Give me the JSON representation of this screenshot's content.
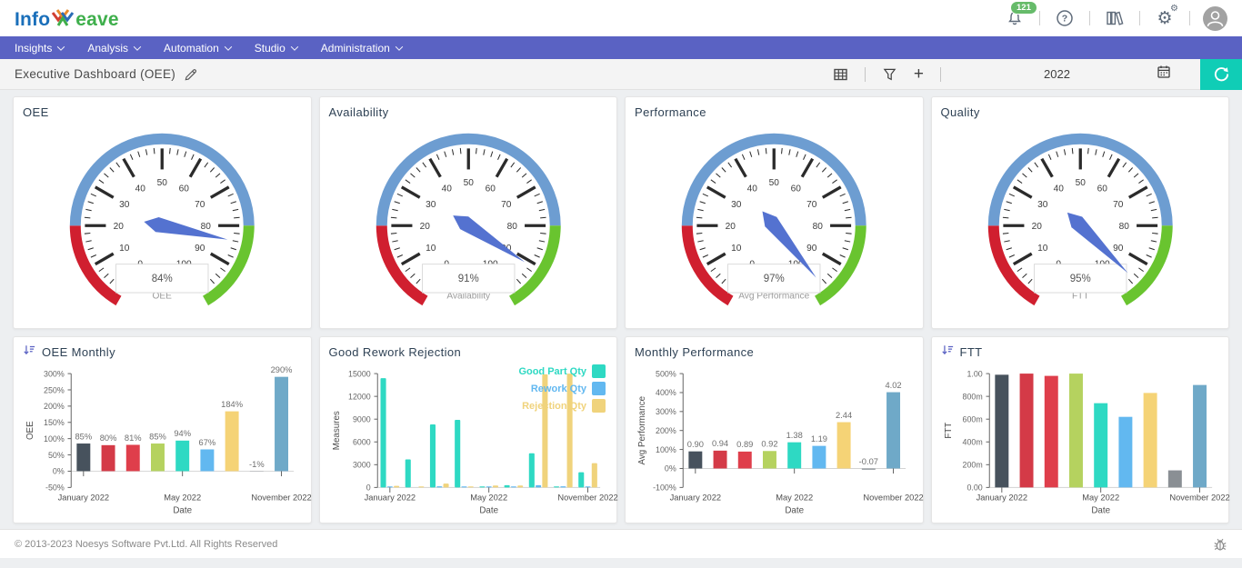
{
  "header": {
    "notification_count": "121",
    "icons": {
      "settings_gear": "⚙",
      "settings_gear_small": "⚙"
    }
  },
  "nav": {
    "items": [
      {
        "label": "Insights"
      },
      {
        "label": "Analysis"
      },
      {
        "label": "Automation"
      },
      {
        "label": "Studio"
      },
      {
        "label": "Administration"
      }
    ]
  },
  "toolbar": {
    "title": "Executive Dashboard (OEE)",
    "plus_label": "+",
    "year": "2022"
  },
  "colors": {
    "accent": "#5a62c3",
    "refresh_teal": "#10cdb6",
    "badge_green": "#66bb6a"
  },
  "gauge_config": {
    "min": 0,
    "max": 100,
    "zones": [
      {
        "from": 0,
        "to": 20,
        "color": "#d01f2f"
      },
      {
        "from": 20,
        "to": 80,
        "color": "#6d9dd1"
      },
      {
        "from": 80,
        "to": 100,
        "color": "#69c42f"
      }
    ],
    "needle_color": "#5472d0"
  },
  "gauges": [
    {
      "title": "OEE",
      "value": 84,
      "display": "84%",
      "axis_label": "OEE"
    },
    {
      "title": "Availability",
      "value": 91,
      "display": "91%",
      "axis_label": "Availability"
    },
    {
      "title": "Performance",
      "value": 97,
      "display": "97%",
      "axis_label": "Avg Performance"
    },
    {
      "title": "Quality",
      "value": 95,
      "display": "95%",
      "axis_label": "FTT"
    }
  ],
  "chart_data": [
    {
      "type": "bar",
      "title": "OEE Monthly",
      "sort_icon": true,
      "xlabel": "Date",
      "ylabel": "OEE",
      "ylim": [
        -50,
        300
      ],
      "yticks": [
        {
          "v": 300,
          "label": "300%"
        },
        {
          "v": 250,
          "label": "250%"
        },
        {
          "v": 200,
          "label": "200%"
        },
        {
          "v": 150,
          "label": "150%"
        },
        {
          "v": 100,
          "label": "100%"
        },
        {
          "v": 50,
          "label": "50%"
        },
        {
          "v": 0,
          "label": "0%"
        },
        {
          "v": -50,
          "label": "-50%"
        }
      ],
      "x_ticks": [
        {
          "slot": 0,
          "label": "January 2022"
        },
        {
          "slot": 4,
          "label": "May 2022"
        },
        {
          "slot": 8,
          "label": "November 2022"
        }
      ],
      "values": [
        85,
        80,
        81,
        85,
        94,
        67,
        184,
        -1,
        290
      ],
      "labels": [
        "85%",
        "80%",
        "81%",
        "85%",
        "94%",
        "67%",
        "184%",
        "-1%",
        "290%"
      ],
      "bar_colors": [
        "#47525d",
        "#d43a47",
        "#df3e4b",
        "#b5d25f",
        "#2ed9c3",
        "#62b8f0",
        "#f5d376",
        "#9a9fa4",
        "#6fa9c8"
      ]
    },
    {
      "type": "bar",
      "title": "Good Rework Rejection",
      "sort_icon": false,
      "legend": true,
      "xlabel": "Date",
      "ylabel": "Measures",
      "ylim": [
        0,
        15000
      ],
      "yticks": [
        {
          "v": 15000,
          "label": "15000"
        },
        {
          "v": 12000,
          "label": "12000"
        },
        {
          "v": 9000,
          "label": "9000"
        },
        {
          "v": 6000,
          "label": "6000"
        },
        {
          "v": 3000,
          "label": "3000"
        },
        {
          "v": 0,
          "label": "0"
        }
      ],
      "x_ticks": [
        {
          "slot": 0,
          "label": "January 2022"
        },
        {
          "slot": 4,
          "label": "May 2022"
        },
        {
          "slot": 8,
          "label": "November 2022"
        }
      ],
      "series": [
        {
          "name": "Good Part Qty",
          "color": "#2ed9c3",
          "values": [
            14400,
            3700,
            8300,
            8900,
            100,
            300,
            4500,
            100,
            2000
          ]
        },
        {
          "name": "Rework Qty",
          "color": "#62b8f0",
          "values": [
            100,
            0,
            150,
            30,
            80,
            50,
            300,
            150,
            50
          ]
        },
        {
          "name": "Rejection Qty",
          "color": "#f0d37c",
          "values": [
            200,
            50,
            500,
            100,
            250,
            250,
            14900,
            15000,
            3200
          ]
        }
      ]
    },
    {
      "type": "bar",
      "title": "Monthly Performance",
      "sort_icon": false,
      "xlabel": "Date",
      "ylabel": "Avg Performance",
      "ylim": [
        -100,
        500
      ],
      "yticks": [
        {
          "v": 500,
          "label": "500%"
        },
        {
          "v": 400,
          "label": "400%"
        },
        {
          "v": 300,
          "label": "300%"
        },
        {
          "v": 200,
          "label": "200%"
        },
        {
          "v": 100,
          "label": "100%"
        },
        {
          "v": 0,
          "label": "0%"
        },
        {
          "v": -100,
          "label": "-100%"
        }
      ],
      "x_ticks": [
        {
          "slot": 0,
          "label": "January 2022"
        },
        {
          "slot": 4,
          "label": "May 2022"
        },
        {
          "slot": 8,
          "label": "November 2022"
        }
      ],
      "values": [
        90,
        94,
        89,
        92,
        138,
        119,
        244,
        -7,
        402
      ],
      "labels": [
        "0.90",
        "0.94",
        "0.89",
        "0.92",
        "1.38",
        "1.19",
        "2.44",
        "-0.07",
        "4.02"
      ],
      "bar_colors": [
        "#47525d",
        "#d43a47",
        "#df3e4b",
        "#b5d25f",
        "#2ed9c3",
        "#62b8f0",
        "#f5d376",
        "#9a9fa4",
        "#6fa9c8"
      ]
    },
    {
      "type": "bar",
      "title": "FTT",
      "sort_icon": true,
      "xlabel": "Date",
      "ylabel": "FTT",
      "ylim": [
        0,
        1
      ],
      "yticks": [
        {
          "v": 1,
          "label": "1.00"
        },
        {
          "v": 0.8,
          "label": "800m"
        },
        {
          "v": 0.6,
          "label": "600m"
        },
        {
          "v": 0.4,
          "label": "400m"
        },
        {
          "v": 0.2,
          "label": "200m"
        },
        {
          "v": 0,
          "label": "0.00"
        }
      ],
      "x_ticks": [
        {
          "slot": 0,
          "label": "January 2022"
        },
        {
          "slot": 4,
          "label": "May 2022"
        },
        {
          "slot": 8,
          "label": "November 2022"
        }
      ],
      "values": [
        0.99,
        1.0,
        0.98,
        1.0,
        0.74,
        0.62,
        0.83,
        0.15,
        0.9
      ],
      "labels": null,
      "bar_colors": [
        "#47525d",
        "#d43a47",
        "#df3e4b",
        "#b5d25f",
        "#2ed9c3",
        "#62b8f0",
        "#f5d376",
        "#8a8f94",
        "#6fa9c8"
      ]
    }
  ],
  "footer": {
    "copyright": "© 2013-2023 Noesys Software Pvt.Ltd. All Rights Reserved"
  }
}
